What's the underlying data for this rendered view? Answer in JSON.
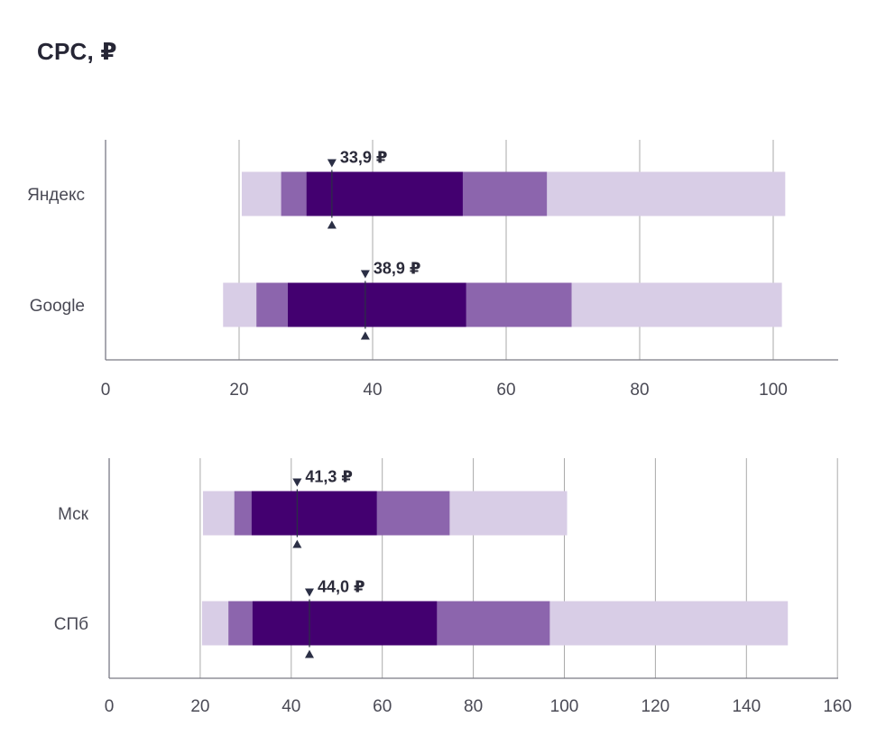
{
  "title": "CPC, ₽",
  "colors": {
    "outer": "#d8cde6",
    "mid": "#8c65ad",
    "inner": "#430070",
    "marker": "#2b2f45",
    "axis": "#7a7a85",
    "grid": "#aaaaaa"
  },
  "chart_data": [
    {
      "type": "bar",
      "subtype": "range-bands-with-marker",
      "title": "CPC, ₽",
      "xlim": [
        0,
        110
      ],
      "xticks": [
        0,
        20,
        40,
        60,
        80,
        100
      ],
      "xtick_labels": [
        "0",
        "20",
        "40",
        "60",
        "80",
        "100"
      ],
      "grid": "vertical",
      "rows": [
        {
          "category": "Яндекс",
          "outer": [
            20.4,
            101.8
          ],
          "mid": [
            26.3,
            66.1
          ],
          "inner": [
            30.1,
            53.5
          ],
          "marker": 33.9,
          "marker_label": "33,9 ₽"
        },
        {
          "category": "Google",
          "outer": [
            17.6,
            101.3
          ],
          "mid": [
            22.6,
            69.8
          ],
          "inner": [
            27.3,
            54.0
          ],
          "marker": 38.9,
          "marker_label": "38,9 ₽"
        }
      ]
    },
    {
      "type": "bar",
      "subtype": "range-bands-with-marker",
      "xlim": [
        0,
        160
      ],
      "xticks": [
        0,
        20,
        40,
        60,
        80,
        100,
        120,
        140,
        160
      ],
      "xtick_labels": [
        "0",
        "20",
        "40",
        "60",
        "80",
        "100",
        "120",
        "140",
        "160"
      ],
      "grid": "vertical",
      "rows": [
        {
          "category": "Мск",
          "outer": [
            20.6,
            100.6
          ],
          "mid": [
            27.5,
            74.8
          ],
          "inner": [
            31.3,
            58.8
          ],
          "marker": 41.3,
          "marker_label": "41,3 ₽"
        },
        {
          "category": "СПб",
          "outer": [
            20.4,
            149.1
          ],
          "mid": [
            26.2,
            96.8
          ],
          "inner": [
            31.5,
            72.0
          ],
          "marker": 44.0,
          "marker_label": "44,0 ₽"
        }
      ]
    }
  ]
}
